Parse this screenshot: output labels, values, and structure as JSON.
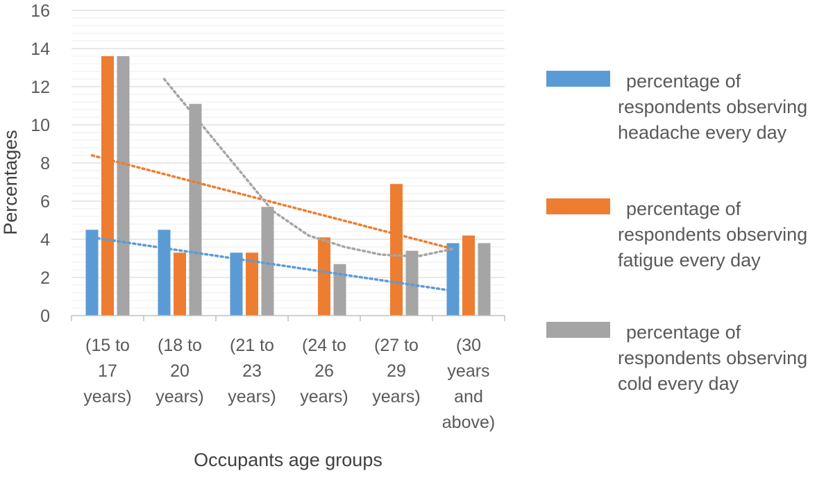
{
  "chart_data": {
    "type": "bar",
    "xlabel": "Occupants age groups",
    "ylabel": "Percentages",
    "ylim": [
      0,
      16
    ],
    "yticks": [
      0,
      2,
      4,
      6,
      8,
      10,
      12,
      14,
      16
    ],
    "grid": "horizontal",
    "legend_position": "right",
    "categories": [
      [
        "(15 to",
        "17",
        "years)"
      ],
      [
        "(18 to",
        "20",
        "years)"
      ],
      [
        "(21 to",
        "23",
        "years)"
      ],
      [
        "(24 to",
        "26",
        "years)"
      ],
      [
        "(27 to",
        "29",
        "years)"
      ],
      [
        "(30",
        "years",
        "and",
        "above)"
      ]
    ],
    "series": [
      {
        "name": "percentage of respondents observing headache every day",
        "legend_lines": [
          "percentage of",
          "respondents observing",
          "headache every day"
        ],
        "color": "#5B9BD5",
        "values": [
          4.5,
          4.5,
          3.3,
          0,
          0,
          3.8
        ],
        "trendline": {
          "x": [
            1,
            6
          ],
          "y": [
            4.1,
            1.3
          ]
        }
      },
      {
        "name": "percentage of respondents observing fatigue every day",
        "legend_lines": [
          "percentage of",
          "respondents observing",
          "fatigue every day"
        ],
        "color": "#ED7D31",
        "values": [
          13.6,
          3.3,
          3.3,
          4.1,
          6.9,
          4.2
        ],
        "trendline": {
          "x": [
            1,
            6
          ],
          "y": [
            8.4,
            3.5
          ]
        }
      },
      {
        "name": "percentage of respondents observing cold every day",
        "legend_lines": [
          "percentage of",
          "respondents observing",
          "cold every day"
        ],
        "color": "#A5A5A5",
        "values": [
          13.6,
          11.1,
          5.7,
          2.7,
          3.4,
          3.8
        ],
        "trendline": {
          "x": [
            2,
            2.5,
            3,
            3.5,
            4,
            4.5,
            5,
            5.5,
            6
          ],
          "y": [
            12.4,
            10.1,
            7.8,
            5.5,
            4.2,
            3.6,
            3.2,
            3.1,
            3.5
          ]
        }
      }
    ]
  }
}
